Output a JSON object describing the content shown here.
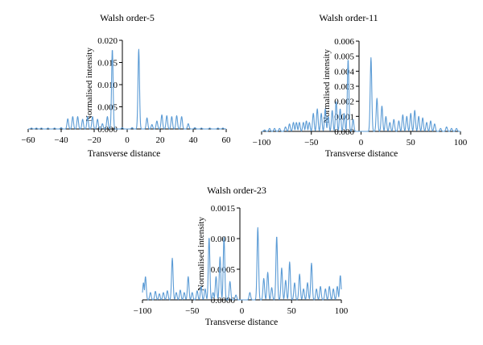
{
  "chart_data": [
    {
      "type": "line",
      "title": "Walsh order-5",
      "xlabel": "Transverse distance",
      "ylabel": "Normalised intensity",
      "xlim": [
        -60,
        60
      ],
      "ylim": [
        0,
        0.02
      ],
      "xticks": [
        -60,
        -40,
        -20,
        0,
        20,
        40,
        60
      ],
      "xtick_labels": [
        "−60",
        "−40",
        "−20",
        "0",
        "20",
        "40",
        "60"
      ],
      "yticks": [
        0,
        0.005,
        0.01,
        0.015,
        0.02
      ],
      "ytick_labels": [
        "0.000",
        "0.005",
        "0.010",
        "0.015",
        "0.020"
      ],
      "grid": false,
      "series": [
        {
          "color": "#5b9bd5",
          "peaks": [
            [
              -58,
              0.0002
            ],
            [
              -55,
              0.0002
            ],
            [
              -52,
              0.0002
            ],
            [
              -48,
              0.0002
            ],
            [
              -44,
              0.0002
            ],
            [
              -40,
              0.0003
            ],
            [
              -36,
              0.0023
            ],
            [
              -33,
              0.0028
            ],
            [
              -30,
              0.0028
            ],
            [
              -27,
              0.0022
            ],
            [
              -24,
              0.0028
            ],
            [
              -21,
              0.0028
            ],
            [
              -18,
              0.0022
            ],
            [
              -15,
              0.0012
            ],
            [
              -12,
              0.0028
            ],
            [
              -9,
              0.018
            ],
            [
              -3,
              0.0003
            ],
            [
              0,
              0
            ],
            [
              3,
              0.0003
            ],
            [
              7,
              0.018
            ],
            [
              12,
              0.0025
            ],
            [
              15,
              0.001
            ],
            [
              18,
              0.0018
            ],
            [
              21,
              0.0032
            ],
            [
              24,
              0.003
            ],
            [
              27,
              0.0028
            ],
            [
              30,
              0.003
            ],
            [
              33,
              0.0028
            ],
            [
              37,
              0.0012
            ],
            [
              41,
              0.0003
            ],
            [
              45,
              0.0002
            ],
            [
              50,
              0.0002
            ],
            [
              55,
              0.0002
            ],
            [
              58,
              0.0002
            ]
          ]
        }
      ]
    },
    {
      "type": "line",
      "title": "Walsh order-11",
      "xlabel": "Transverse distance",
      "ylabel": "Normalised intensity",
      "xlim": [
        -100,
        100
      ],
      "ylim": [
        0,
        0.006
      ],
      "xticks": [
        -100,
        -50,
        0,
        50,
        100
      ],
      "xtick_labels": [
        "−100",
        "−50",
        "0",
        "50",
        "100"
      ],
      "yticks": [
        0,
        0.001,
        0.002,
        0.003,
        0.004,
        0.005,
        0.006
      ],
      "ytick_labels": [
        "0.000",
        "0.001",
        "0.002",
        "0.003",
        "0.004",
        "0.005",
        "0.006"
      ],
      "grid": false,
      "series": [
        {
          "color": "#5b9bd5",
          "peaks": [
            [
              -97,
              0.0001
            ],
            [
              -92,
              0.0002
            ],
            [
              -87,
              0.0002
            ],
            [
              -82,
              0.0002
            ],
            [
              -76,
              0.0003
            ],
            [
              -72,
              0.0005
            ],
            [
              -68,
              0.0006
            ],
            [
              -65,
              0.0006
            ],
            [
              -62,
              0.0006
            ],
            [
              -58,
              0.0006
            ],
            [
              -55,
              0.0007
            ],
            [
              -52,
              0.0006
            ],
            [
              -48,
              0.0012
            ],
            [
              -44,
              0.0015
            ],
            [
              -40,
              0.0012
            ],
            [
              -36,
              0.0015
            ],
            [
              -33,
              0.001
            ],
            [
              -29,
              0.0014
            ],
            [
              -25,
              0.002
            ],
            [
              -21,
              0.0015
            ],
            [
              -17,
              0.0012
            ],
            [
              -13,
              0.0048
            ],
            [
              -8,
              0.0008
            ],
            [
              0,
              0
            ],
            [
              10,
              0.0049
            ],
            [
              16,
              0.0022
            ],
            [
              21,
              0.0017
            ],
            [
              25,
              0.001
            ],
            [
              29,
              0.0006
            ],
            [
              33,
              0.0008
            ],
            [
              38,
              0.0007
            ],
            [
              42,
              0.0011
            ],
            [
              46,
              0.001
            ],
            [
              50,
              0.0012
            ],
            [
              54,
              0.0014
            ],
            [
              58,
              0.001
            ],
            [
              62,
              0.0009
            ],
            [
              66,
              0.0006
            ],
            [
              70,
              0.0007
            ],
            [
              74,
              0.0005
            ],
            [
              80,
              0.0002
            ],
            [
              86,
              0.0003
            ],
            [
              91,
              0.0002
            ],
            [
              96,
              0.0002
            ]
          ]
        }
      ]
    },
    {
      "type": "line",
      "title": "Walsh order-23",
      "xlabel": "Transverse distance",
      "ylabel": "Normalised intensity",
      "xlim": [
        -100,
        100
      ],
      "ylim": [
        0,
        0.0015
      ],
      "xticks": [
        -100,
        -50,
        0,
        50,
        100
      ],
      "xtick_labels": [
        "−100",
        "−50",
        "0",
        "50",
        "100"
      ],
      "yticks": [
        0,
        0.0005,
        0.001,
        0.0015
      ],
      "ytick_labels": [
        "0.0000",
        "0.0005",
        "0.0010",
        "0.0015"
      ],
      "grid": false,
      "series": [
        {
          "color": "#5b9bd5",
          "peaks": [
            [
              -99,
              0.00028
            ],
            [
              -97,
              0.00038
            ],
            [
              -92,
              0.00012
            ],
            [
              -87,
              0.00014
            ],
            [
              -83,
              0.0001
            ],
            [
              -79,
              0.00012
            ],
            [
              -75,
              0.00015
            ],
            [
              -70,
              0.00068
            ],
            [
              -66,
              0.00012
            ],
            [
              -62,
              0.00016
            ],
            [
              -58,
              0.00012
            ],
            [
              -54,
              0.00038
            ],
            [
              -50,
              0.00012
            ],
            [
              -45,
              0.00015
            ],
            [
              -41,
              0.00022
            ],
            [
              -37,
              0.00018
            ],
            [
              -33,
              0.00102
            ],
            [
              -29,
              0.00012
            ],
            [
              -26,
              0.00038
            ],
            [
              -22,
              0.0007
            ],
            [
              -18,
              0.00102
            ],
            [
              -12,
              0.0003
            ],
            [
              -6,
              8e-05
            ],
            [
              0,
              0
            ],
            [
              8,
              0.00012
            ],
            [
              16,
              0.00118
            ],
            [
              22,
              0.00035
            ],
            [
              26,
              0.00045
            ],
            [
              30,
              0.0002
            ],
            [
              35,
              0.00104
            ],
            [
              40,
              0.00052
            ],
            [
              44,
              0.00032
            ],
            [
              48,
              0.00062
            ],
            [
              53,
              0.00028
            ],
            [
              58,
              0.00042
            ],
            [
              62,
              0.00018
            ],
            [
              66,
              0.00028
            ],
            [
              70,
              0.0006
            ],
            [
              75,
              0.00018
            ],
            [
              79,
              0.00022
            ],
            [
              84,
              0.00018
            ],
            [
              88,
              0.00022
            ],
            [
              92,
              0.00018
            ],
            [
              96,
              0.00022
            ],
            [
              99,
              0.0004
            ]
          ]
        }
      ]
    }
  ]
}
